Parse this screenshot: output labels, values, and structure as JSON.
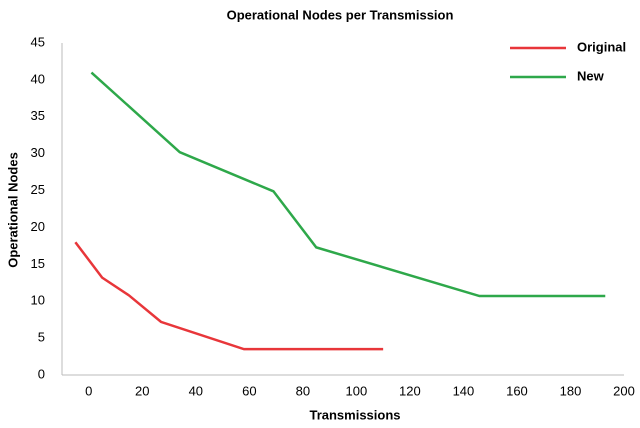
{
  "chart_data": {
    "type": "line",
    "title": "Operational Nodes per Transmission",
    "x_label": "Transmissions",
    "y_label": "Operational Nodes",
    "series": [
      {
        "name": "Original",
        "color": "#e8363a",
        "x": [
          -5,
          5,
          15,
          27,
          58,
          110
        ],
        "values": [
          18,
          13.2,
          10.8,
          7.2,
          3.5,
          3.5
        ]
      },
      {
        "name": "New",
        "color": "#2ea84a",
        "x": [
          1,
          34,
          69,
          85,
          146,
          193
        ],
        "values": [
          41,
          30.2,
          24.9,
          17.3,
          10.7,
          10.7
        ]
      }
    ],
    "xlim": [
      -10,
      200
    ],
    "xticks": [
      0,
      20,
      40,
      60,
      80,
      100,
      120,
      140,
      160,
      180,
      200
    ],
    "ylim": [
      0,
      45
    ],
    "yticks": [
      0,
      5,
      10,
      15,
      20,
      25,
      30,
      35,
      40,
      45
    ],
    "grid": false,
    "legend": "upper right"
  }
}
